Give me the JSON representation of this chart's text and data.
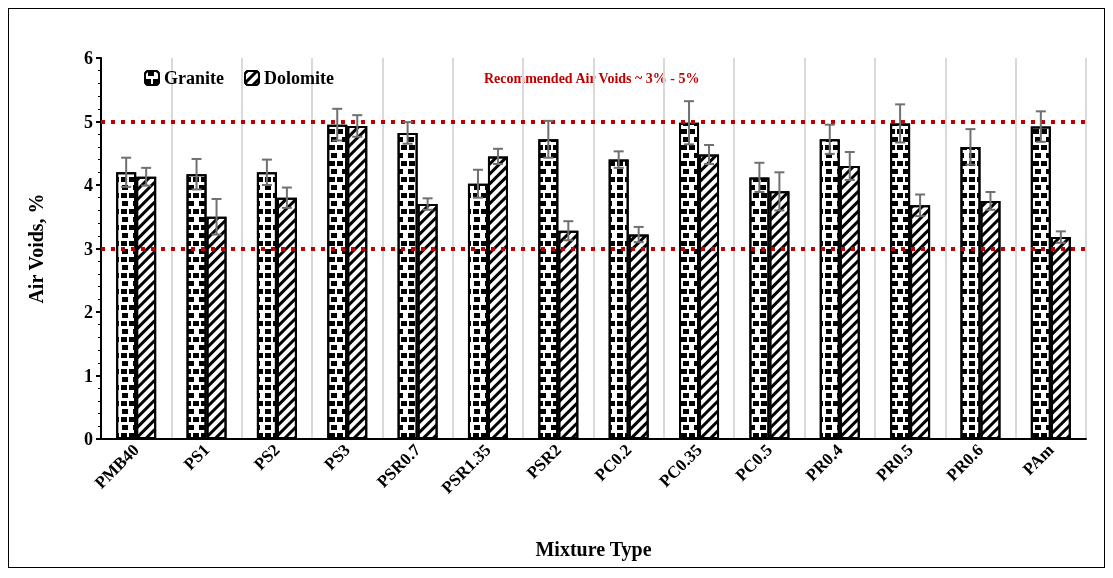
{
  "chart_data": {
    "type": "bar",
    "xlabel": "Mixture Type",
    "ylabel": "Air Voids, %",
    "categories": [
      "PMB40",
      "PS1",
      "PS2",
      "PS3",
      "PSR0.7",
      "PSR1.35",
      "PSR2",
      "PC0.2",
      "PC0.35",
      "PC0.5",
      "PR0.4",
      "PR0.5",
      "PR0.6",
      "PAm"
    ],
    "series": [
      {
        "name": "Granite",
        "color": "#ffffff",
        "values": [
          4.2,
          4.17,
          4.2,
          4.95,
          4.82,
          4.02,
          4.72,
          4.4,
          4.98,
          4.12,
          4.72,
          4.97,
          4.6,
          4.92
        ],
        "errors": [
          0.23,
          0.24,
          0.2,
          0.25,
          0.17,
          0.22,
          0.29,
          0.13,
          0.34,
          0.23,
          0.23,
          0.3,
          0.28,
          0.24
        ]
      },
      {
        "name": "Dolomite",
        "color": "#ffffff",
        "values": [
          4.13,
          3.5,
          3.8,
          4.93,
          3.7,
          4.45,
          3.28,
          3.22,
          4.48,
          3.9,
          4.3,
          3.68,
          3.75,
          3.18
        ],
        "errors": [
          0.14,
          0.28,
          0.16,
          0.17,
          0.09,
          0.12,
          0.15,
          0.12,
          0.15,
          0.3,
          0.22,
          0.17,
          0.14,
          0.09
        ]
      }
    ],
    "ylim": [
      0,
      6
    ],
    "yticks": [
      0,
      1,
      2,
      3,
      4,
      5,
      6
    ],
    "grid": "x",
    "legend": "top left",
    "ref_lines": [
      {
        "axis": "y",
        "value": 5,
        "color": "#c00000",
        "line_style": "dotted"
      },
      {
        "axis": "y",
        "value": 3,
        "color": "#c00000",
        "line_style": "dotted"
      }
    ],
    "annotations": [
      "Recommended Air Voids ~ 3% - 5%"
    ]
  }
}
